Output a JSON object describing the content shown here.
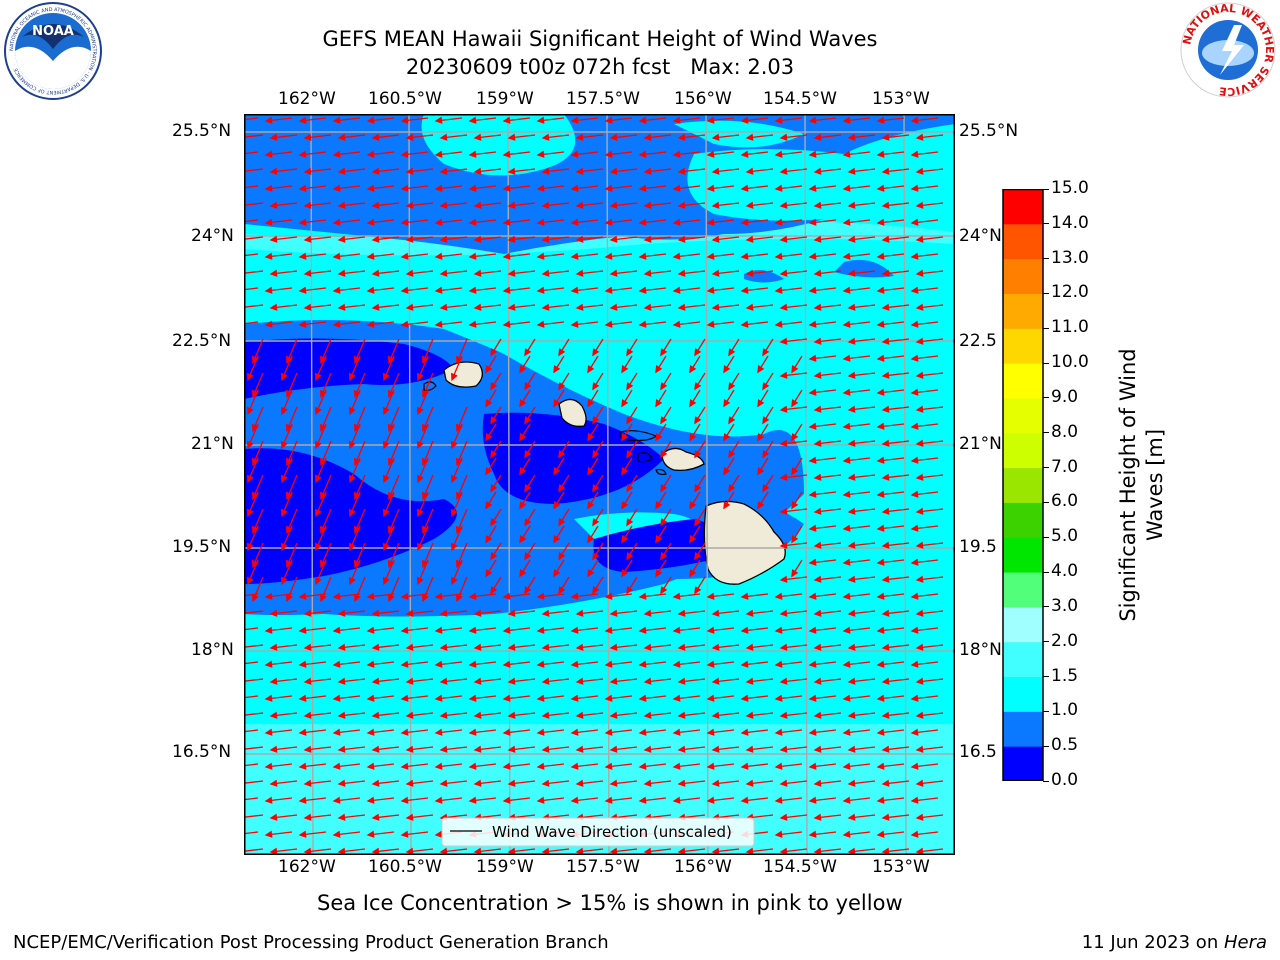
{
  "title": {
    "line1": "GEFS MEAN Hawaii Significant Height of Wind Waves",
    "line2": "20230609 t00z 072h fcst   Max: 2.03"
  },
  "logos": {
    "left_text": "NOAA",
    "left_ring_text": "NATIONAL OCEANIC AND ATMOSPHERIC ADMINISTRATION · U.S. DEPARTMENT OF COMMERCE",
    "right_ring_text": "NATIONAL WEATHER SERVICE"
  },
  "axes": {
    "top_ticks": [
      "162°W",
      "160.5°W",
      "159°W",
      "157.5°W",
      "156°W",
      "154.5°W",
      "153°W"
    ],
    "bottom_ticks": [
      "162°W",
      "160.5°W",
      "159°W",
      "157.5°W",
      "156°W",
      "154.5°W",
      "153°W"
    ],
    "left_ticks": [
      "25.5°N",
      "24°N",
      "22.5°N",
      "21°N",
      "19.5°N",
      "18°N",
      "16.5°N"
    ],
    "right_ticks": [
      "25.5°N",
      "24°N",
      "22.5",
      "21°N",
      "19.5",
      "18°N",
      "16.5"
    ]
  },
  "legend": {
    "label": "Wind Wave Direction (unscaled)"
  },
  "colorbar": {
    "label_line1": "Significant Height of Wind",
    "label_line2": "Waves [m]",
    "levels": [
      "0.0",
      "0.5",
      "1.0",
      "1.5",
      "2.0",
      "3.0",
      "4.0",
      "5.0",
      "6.0",
      "7.0",
      "8.0",
      "9.0",
      "10.0",
      "11.0",
      "12.0",
      "13.0",
      "14.0",
      "15.0"
    ],
    "colors": [
      "#0000ff",
      "#0a78ff",
      "#00ffff",
      "#41ffff",
      "#a0ffff",
      "#52ff7a",
      "#00e600",
      "#3cd200",
      "#9be600",
      "#cdff00",
      "#e6ff00",
      "#ffff00",
      "#ffd700",
      "#ffaa00",
      "#ff8000",
      "#ff5500",
      "#ff0000"
    ]
  },
  "caption": "Sea Ice Concentration > 15% is shown in pink to yellow",
  "footer": {
    "left": "NCEP/EMC/Verification Post Processing Product Generation Branch",
    "right_prefix": "11 Jun 2023 on ",
    "right_host": "Hera"
  },
  "map_colors": {
    "sea_low": "#0000ff",
    "sea_mid": "#0a78ff",
    "sea_main": "#00ffff",
    "sea_light": "#41ffff",
    "land": "#efebd8",
    "arrow": "#ff0000",
    "grid": "#aaaaaa"
  }
}
